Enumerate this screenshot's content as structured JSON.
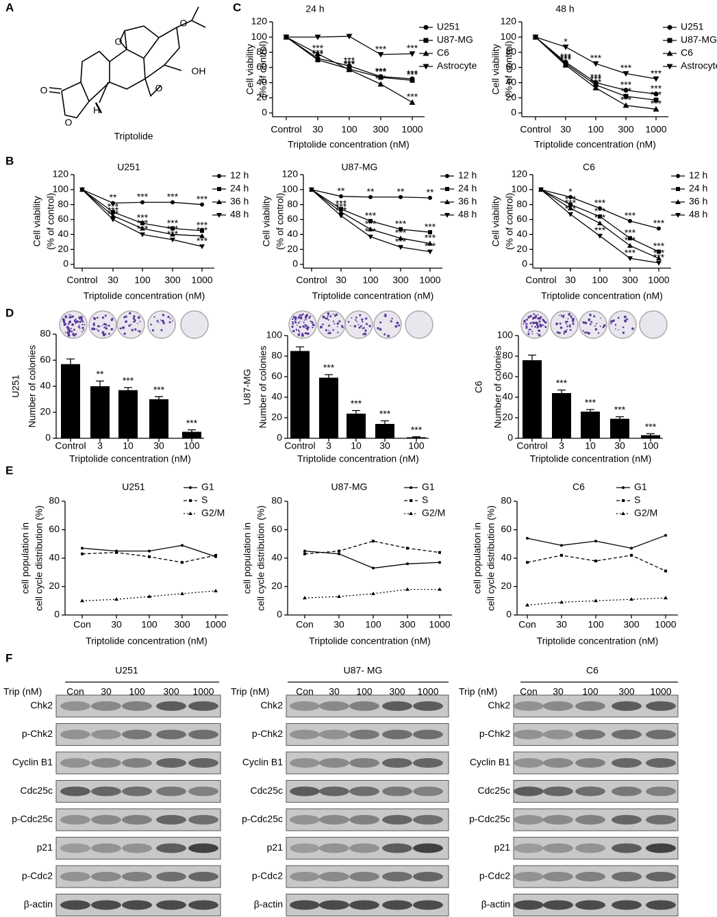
{
  "panels": [
    "A",
    "B",
    "C",
    "D",
    "E",
    "F"
  ],
  "structure": {
    "name": "Triptolide",
    "atoms": [
      "O",
      "O",
      "O",
      "O",
      "O",
      "OH",
      "H"
    ]
  },
  "chart_data": [
    {
      "type": "line",
      "title": "24 h",
      "categories": [
        "Control",
        "30",
        "100",
        "300",
        "1000"
      ],
      "ylim": [
        -5,
        120
      ],
      "yticks": [
        0,
        20,
        40,
        60,
        80,
        100,
        120
      ],
      "ylabel": [
        "Cell viability",
        "(% of control)"
      ],
      "xlabel": "Triptolide concentration (nM)",
      "series": [
        {
          "name": "U251",
          "color": "#000000",
          "marker": "circle",
          "values": [
            100,
            72,
            62,
            48,
            45
          ],
          "annotations": [
            null,
            "***",
            "***",
            "***",
            "***"
          ]
        },
        {
          "name": "U87-MG",
          "color": "#000000",
          "marker": "square",
          "values": [
            100,
            70,
            58,
            47,
            43
          ],
          "annotations": [
            null,
            "***",
            "***",
            "***",
            "***"
          ]
        },
        {
          "name": "C6",
          "color": "#000000",
          "marker": "triangle",
          "values": [
            100,
            78,
            57,
            38,
            14
          ],
          "annotations": [
            null,
            "***",
            "***",
            "***",
            "***"
          ]
        },
        {
          "name": "Astrocyte",
          "color": "#000000",
          "marker": "triangle-down",
          "values": [
            100,
            100,
            101,
            77,
            78
          ],
          "annotations": [
            null,
            null,
            null,
            "***",
            "***"
          ]
        }
      ]
    },
    {
      "type": "line",
      "title": "48 h",
      "categories": [
        "Control",
        "30",
        "100",
        "300",
        "1000"
      ],
      "ylim": [
        -5,
        120
      ],
      "yticks": [
        0,
        20,
        40,
        60,
        80,
        100,
        120
      ],
      "ylabel": [
        "Cell viability",
        "(% of control)"
      ],
      "xlabel": "Triptolide concentration (nM)",
      "series": [
        {
          "name": "U251",
          "color": "#000000",
          "marker": "circle",
          "values": [
            100,
            67,
            40,
            30,
            25
          ],
          "annotations": [
            null,
            "***",
            "***",
            "***",
            "***"
          ]
        },
        {
          "name": "U87-MG",
          "color": "#000000",
          "marker": "square",
          "values": [
            100,
            65,
            37,
            22,
            17
          ],
          "annotations": [
            null,
            "***",
            "***",
            "***",
            "***"
          ]
        },
        {
          "name": "C6",
          "color": "#000000",
          "marker": "triangle",
          "values": [
            100,
            63,
            33,
            10,
            5
          ],
          "annotations": [
            null,
            "***",
            "***",
            "***",
            "***"
          ]
        },
        {
          "name": "Astrocyte",
          "color": "#000000",
          "marker": "triangle-down",
          "values": [
            100,
            87,
            65,
            52,
            45
          ],
          "annotations": [
            null,
            "*",
            "***",
            "***",
            "***"
          ]
        }
      ]
    },
    {
      "type": "line",
      "title": "U251",
      "categories": [
        "Control",
        "30",
        "100",
        "300",
        "1000"
      ],
      "ylim": [
        -5,
        120
      ],
      "yticks": [
        0,
        20,
        40,
        60,
        80,
        100,
        120
      ],
      "ylabel": [
        "Cell viability",
        "(% of control)"
      ],
      "xlabel": "Triptolide concentration (nM)",
      "series": [
        {
          "name": "12 h",
          "color": "#000000",
          "marker": "circle",
          "values": [
            100,
            82,
            83,
            83,
            80
          ],
          "annotations": [
            null,
            "**",
            "***",
            "***",
            "***"
          ]
        },
        {
          "name": "24 h",
          "color": "#000000",
          "marker": "square",
          "values": [
            100,
            70,
            55,
            48,
            45
          ],
          "annotations": [
            null,
            "***",
            "***",
            "***",
            "***"
          ]
        },
        {
          "name": "36 h",
          "color": "#000000",
          "marker": "triangle",
          "values": [
            100,
            65,
            48,
            40,
            38
          ],
          "annotations": [
            null,
            "***",
            "***",
            "***",
            "***"
          ]
        },
        {
          "name": "48 h",
          "color": "#000000",
          "marker": "triangle-down",
          "values": [
            100,
            60,
            40,
            33,
            24
          ],
          "annotations": [
            null,
            "***",
            "***",
            "***",
            "***"
          ]
        }
      ]
    },
    {
      "type": "line",
      "title": "U87-MG",
      "categories": [
        "Control",
        "30",
        "100",
        "300",
        "1000"
      ],
      "ylim": [
        -5,
        120
      ],
      "yticks": [
        0,
        20,
        40,
        60,
        80,
        100,
        120
      ],
      "ylabel": [
        "Cell viability",
        "(% of control)"
      ],
      "xlabel": "Triptolide concentration (nM)",
      "series": [
        {
          "name": "12 h",
          "color": "#000000",
          "marker": "circle",
          "values": [
            100,
            91,
            90,
            90,
            89
          ],
          "annotations": [
            null,
            "**",
            "**",
            "**",
            "**"
          ]
        },
        {
          "name": "24 h",
          "color": "#000000",
          "marker": "square",
          "values": [
            100,
            74,
            58,
            47,
            43
          ],
          "annotations": [
            null,
            "***",
            "***",
            "***",
            "***"
          ]
        },
        {
          "name": "36 h",
          "color": "#000000",
          "marker": "triangle",
          "values": [
            100,
            70,
            47,
            35,
            28
          ],
          "annotations": [
            null,
            "***",
            "***",
            "***",
            "***"
          ]
        },
        {
          "name": "48 h",
          "color": "#000000",
          "marker": "triangle-down",
          "values": [
            100,
            65,
            37,
            23,
            17
          ],
          "annotations": [
            null,
            "***",
            "***",
            "***",
            "***"
          ]
        }
      ]
    },
    {
      "type": "line",
      "title": "C6",
      "categories": [
        "Control",
        "30",
        "100",
        "300",
        "1000"
      ],
      "ylim": [
        -5,
        120
      ],
      "yticks": [
        0,
        20,
        40,
        60,
        80,
        100,
        120
      ],
      "ylabel": [
        "Cell viability",
        "(% of control)"
      ],
      "xlabel": "Triptolide concentration (nM)",
      "series": [
        {
          "name": "12 h",
          "color": "#000000",
          "marker": "circle",
          "values": [
            100,
            90,
            75,
            58,
            48
          ],
          "annotations": [
            null,
            "*",
            "***",
            "***",
            "***"
          ]
        },
        {
          "name": "24 h",
          "color": "#000000",
          "marker": "square",
          "values": [
            100,
            80,
            64,
            35,
            17
          ],
          "annotations": [
            null,
            "***",
            "***",
            "***",
            "***"
          ]
        },
        {
          "name": "36 h",
          "color": "#000000",
          "marker": "triangle",
          "values": [
            100,
            75,
            55,
            25,
            8
          ],
          "annotations": [
            null,
            "***",
            "***",
            "***",
            "***"
          ]
        },
        {
          "name": "48 h",
          "color": "#000000",
          "marker": "triangle-down",
          "values": [
            100,
            67,
            38,
            8,
            2
          ],
          "annotations": [
            null,
            "***",
            "***",
            "***",
            "***"
          ]
        }
      ]
    },
    {
      "type": "bar",
      "title": "U251",
      "categories": [
        "Control",
        "3",
        "10",
        "30",
        "100"
      ],
      "values": [
        57,
        40,
        37,
        30,
        5
      ],
      "errors": [
        4,
        4,
        2,
        2,
        1.5
      ],
      "annotations": [
        null,
        "**",
        "***",
        "***",
        "***"
      ],
      "color": "#000000",
      "ylim": [
        0,
        80
      ],
      "yticks": [
        0,
        20,
        40,
        60,
        80
      ],
      "ylabel": "Number of colonies",
      "xlabel": "Triptolide concentration (nM)"
    },
    {
      "type": "bar",
      "title": "U87-MG",
      "categories": [
        "Control",
        "3",
        "10",
        "30",
        "100"
      ],
      "values": [
        85,
        59,
        24,
        14,
        1
      ],
      "errors": [
        4,
        3,
        3,
        3,
        0.5
      ],
      "annotations": [
        null,
        "***",
        "***",
        "***",
        "***"
      ],
      "color": "#000000",
      "ylim": [
        0,
        100
      ],
      "yticks": [
        0,
        20,
        40,
        60,
        80,
        100
      ],
      "ylabel": "Number of colonies",
      "xlabel": "Triptolide concentration (nM)"
    },
    {
      "type": "bar",
      "title": "C6",
      "categories": [
        "Control",
        "3",
        "10",
        "30",
        "100"
      ],
      "values": [
        76,
        44,
        26,
        19,
        3
      ],
      "errors": [
        5,
        3,
        2,
        2,
        1.5
      ],
      "annotations": [
        null,
        "***",
        "***",
        "***",
        "***"
      ],
      "color": "#000000",
      "ylim": [
        0,
        100
      ],
      "yticks": [
        0,
        20,
        40,
        60,
        80,
        100
      ],
      "ylabel": "Number of colonies",
      "xlabel": "Triptolide concentration (nM)"
    },
    {
      "type": "line",
      "title": "U251",
      "categories": [
        "Con",
        "30",
        "100",
        "300",
        "1000"
      ],
      "ylim": [
        0,
        80
      ],
      "yticks": [
        0,
        20,
        40,
        60,
        80
      ],
      "ylabel": [
        "cell population in",
        "cell cycle distribution (%)"
      ],
      "xlabel": "Triptolide concentration (nM)",
      "series": [
        {
          "name": "G1",
          "color": "#000000",
          "marker": "circle",
          "linestyle": "solid",
          "values": [
            47,
            45,
            45,
            49,
            41
          ]
        },
        {
          "name": "S",
          "color": "#000000",
          "marker": "square",
          "linestyle": "dashed",
          "values": [
            43,
            44,
            41,
            37,
            42
          ]
        },
        {
          "name": "G2/M",
          "color": "#000000",
          "marker": "triangle",
          "linestyle": "dotted",
          "values": [
            10,
            11,
            13,
            15,
            17
          ]
        }
      ]
    },
    {
      "type": "line",
      "title": "U87-MG",
      "categories": [
        "Con",
        "30",
        "100",
        "300",
        "1000"
      ],
      "ylim": [
        0,
        80
      ],
      "yticks": [
        0,
        20,
        40,
        60,
        80
      ],
      "ylabel": [
        "cell population in",
        "cell cycle distribution (%)"
      ],
      "xlabel": "Triptolide concentration (nM)",
      "series": [
        {
          "name": "G1",
          "color": "#000000",
          "marker": "circle",
          "linestyle": "solid",
          "values": [
            45,
            43,
            33,
            36,
            37
          ]
        },
        {
          "name": "S",
          "color": "#000000",
          "marker": "square",
          "linestyle": "dashed",
          "values": [
            43,
            45,
            52,
            47,
            44
          ]
        },
        {
          "name": "G2/M",
          "color": "#000000",
          "marker": "triangle",
          "linestyle": "dotted",
          "values": [
            12,
            13,
            15,
            18,
            18
          ]
        }
      ]
    },
    {
      "type": "line",
      "title": "C6",
      "categories": [
        "Con",
        "30",
        "100",
        "300",
        "1000"
      ],
      "ylim": [
        0,
        80
      ],
      "yticks": [
        0,
        20,
        40,
        60,
        80
      ],
      "ylabel": [
        "cell population in",
        "cell cycle distribution (%)"
      ],
      "xlabel": "Triptolide concentration (nM)",
      "series": [
        {
          "name": "G1",
          "color": "#000000",
          "marker": "circle",
          "linestyle": "solid",
          "values": [
            54,
            49,
            52,
            47,
            56
          ]
        },
        {
          "name": "S",
          "color": "#000000",
          "marker": "square",
          "linestyle": "dashed",
          "values": [
            37,
            42,
            38,
            42,
            31
          ]
        },
        {
          "name": "G2/M",
          "color": "#000000",
          "marker": "triangle",
          "linestyle": "dotted",
          "values": [
            7,
            9,
            10,
            11,
            12
          ]
        }
      ]
    }
  ],
  "blots": [
    {
      "title": "U251",
      "header": "Trip (nM)",
      "lanes": [
        "Con",
        "30",
        "100",
        "300",
        "1000"
      ],
      "rows": [
        "Chk2",
        "p-Chk2",
        "Cyclin B1",
        "Cdc25c",
        "p-Cdc25c",
        "p21",
        "p-Cdc2",
        "β-actin"
      ]
    },
    {
      "title": "U87- MG",
      "header": "Trip (nM)",
      "lanes": [
        "Con",
        "30",
        "100",
        "300",
        "1000"
      ],
      "rows": [
        "Chk2",
        "p-Chk2",
        "Cyclin B1",
        "Cdc25c",
        "p-Cdc25c",
        "p21",
        "p-Cdc2",
        "β-actin"
      ]
    },
    {
      "title": "C6",
      "header": "Trip (nM)",
      "lanes": [
        "Con",
        "30",
        "100",
        "300",
        "1000"
      ],
      "rows": [
        "Chk2",
        "p-Chk2",
        "Cyclin B1",
        "Cdc25c",
        "p-Cdc25c",
        "p21",
        "p-Cdc2",
        "β-actin"
      ]
    }
  ]
}
